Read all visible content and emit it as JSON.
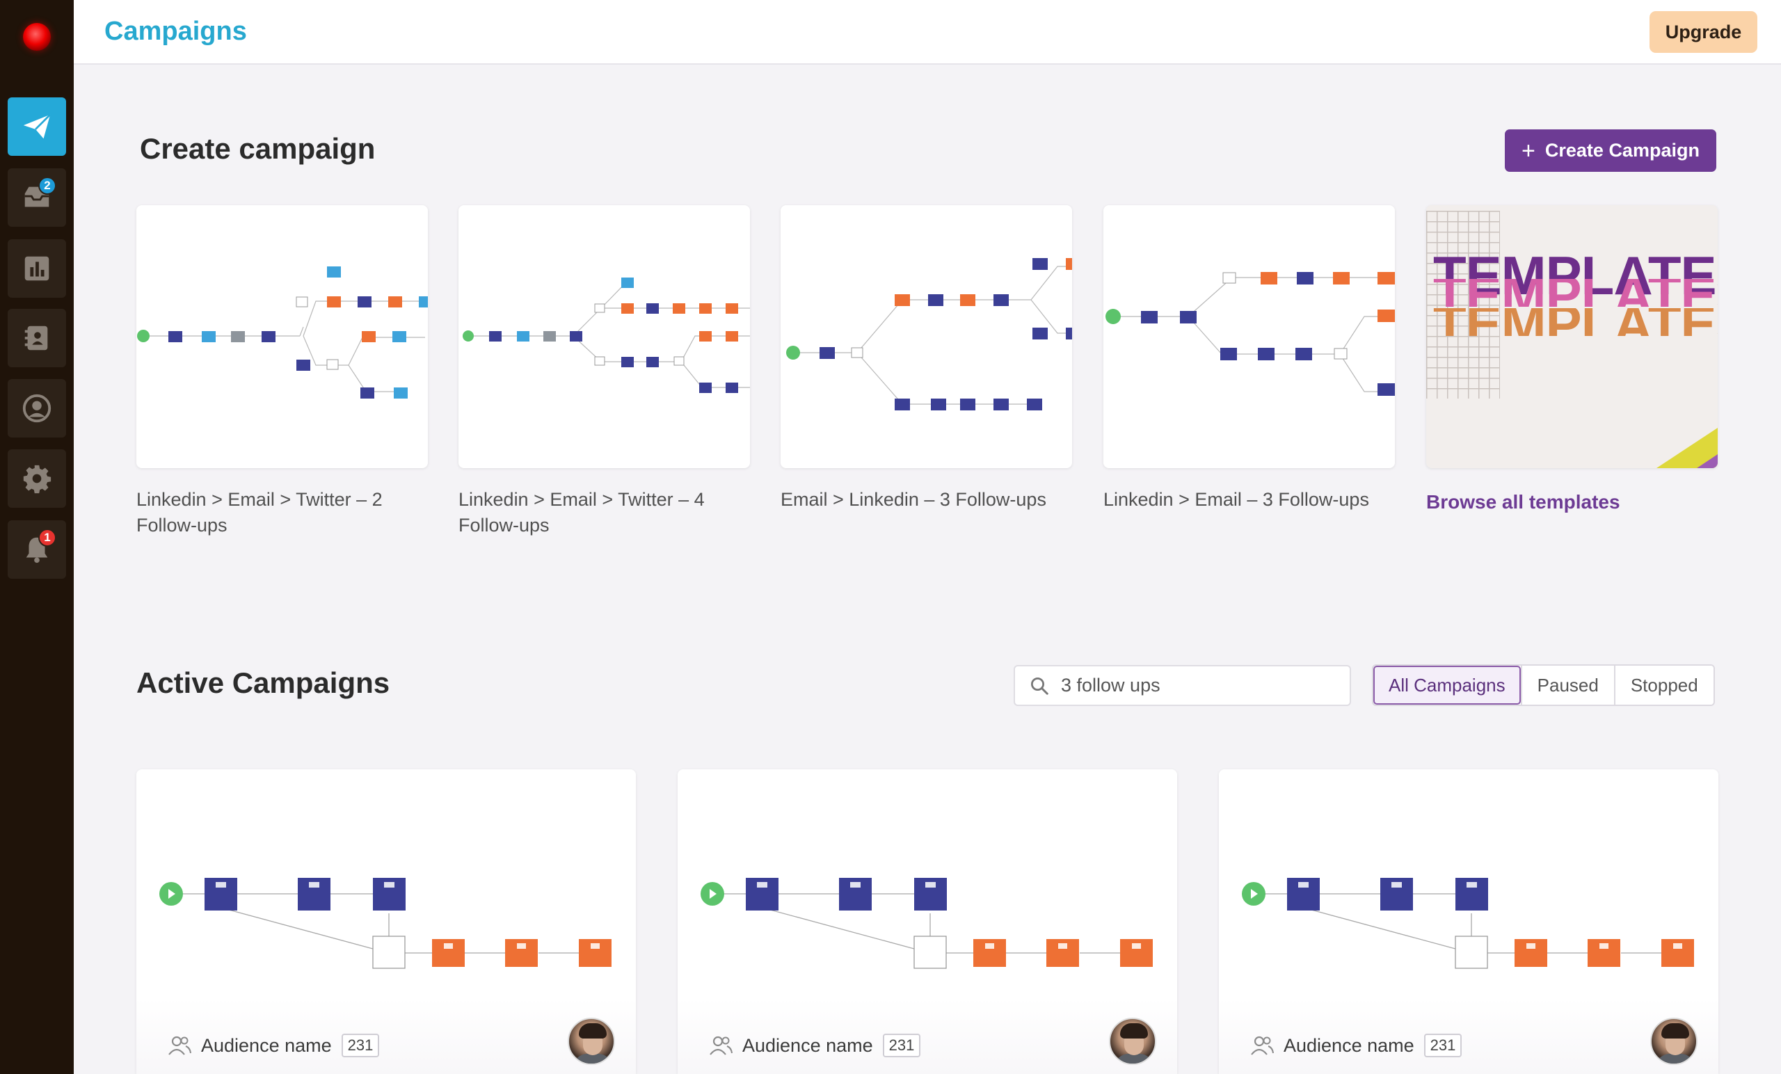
{
  "header": {
    "title": "Campaigns",
    "upgrade_label": "Upgrade"
  },
  "sidebar": {
    "items": [
      {
        "icon": "paper-plane-icon",
        "active": true
      },
      {
        "icon": "inbox-icon",
        "badge": "2"
      },
      {
        "icon": "bar-chart-icon"
      },
      {
        "icon": "address-book-icon"
      },
      {
        "icon": "user-circle-icon"
      },
      {
        "icon": "gear-icon"
      },
      {
        "icon": "bell-icon",
        "badge": "1"
      }
    ]
  },
  "create": {
    "title": "Create campaign",
    "button_label": "Create Campaign",
    "templates": [
      {
        "label": "Linkedin > Email > Twitter – 2 Follow-ups"
      },
      {
        "label": "Linkedin > Email > Twitter – 4 Follow-ups"
      },
      {
        "label": "Email > Linkedin – 3 Follow-ups"
      },
      {
        "label": "Linkedin > Email – 3 Follow-ups"
      }
    ],
    "browse_label": "Browse all templates",
    "browse_image_text": "TEMPLATES"
  },
  "active": {
    "title": "Active Campaigns",
    "search_value": "3 follow ups",
    "filters": [
      "All Campaigns",
      "Paused",
      "Stopped"
    ],
    "selected_filter": "All Campaigns",
    "campaigns": [
      {
        "audience": "Audience name",
        "count": "231"
      },
      {
        "audience": "Audience name",
        "count": "231"
      },
      {
        "audience": "Audience name",
        "count": "231"
      }
    ]
  },
  "colors": {
    "accent_blue": "#27a8cf",
    "brand_purple": "#6d3b94",
    "node_navy": "#3b3f95",
    "node_orange": "#ee7034",
    "node_lightblue": "#3ea3db",
    "node_green": "#5cc36b",
    "sidebar_bg": "#1f1309",
    "upgrade_bg": "#fbd3a8"
  }
}
